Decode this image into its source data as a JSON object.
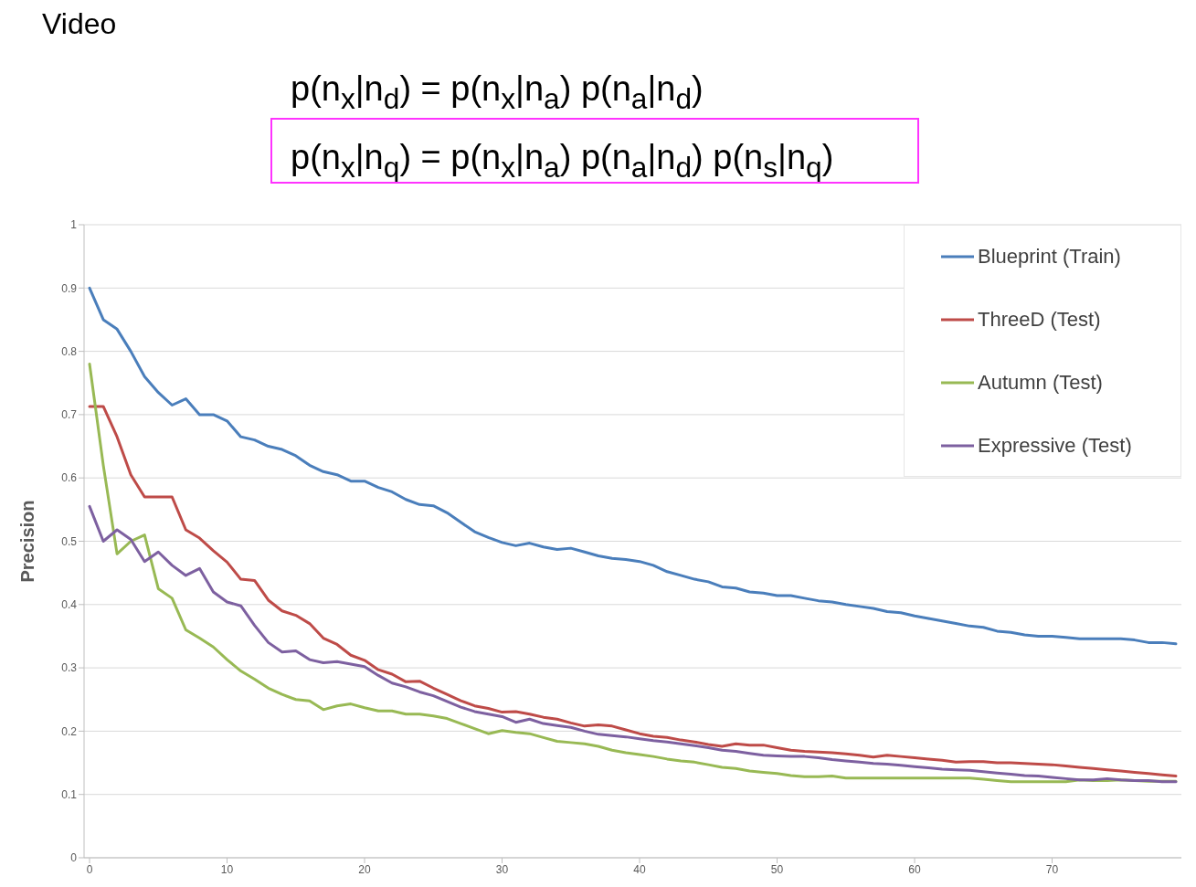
{
  "chart_data": {
    "type": "line",
    "title": "Video",
    "annotations": [
      "p(n$_{x}$|n$_{d}$) = p(n$_{x}$|n$_{a}$) p(n$_{a}$|n$_{d}$)",
      "p(n$_{x}$|n$_{q}$) = p(n$_{x}$|n$_{a}$) p(n$_{a}$|n$_{d}$) p(n$_{s}$|n$_{q}$)"
    ],
    "ylabel": "Precision",
    "x": [
      0,
      1,
      2,
      3,
      4,
      5,
      6,
      7,
      8,
      9,
      10,
      11,
      12,
      13,
      14,
      15,
      16,
      17,
      18,
      19,
      20,
      21,
      22,
      23,
      24,
      25,
      26,
      27,
      28,
      29,
      30,
      31,
      32,
      33,
      34,
      35,
      36,
      37,
      38,
      39,
      40,
      41,
      42,
      43,
      44,
      45,
      46,
      47,
      48,
      49,
      50,
      51,
      52,
      53,
      54,
      55,
      56,
      57,
      58,
      59,
      60,
      61,
      62,
      63,
      64,
      65,
      66,
      67,
      68,
      69,
      70,
      71,
      72,
      73,
      74,
      75,
      76,
      77,
      78,
      79
    ],
    "xlim": [
      -0.4,
      79.4
    ],
    "xticks": [
      0,
      10,
      20,
      30,
      40,
      50,
      60,
      70
    ],
    "ylim": [
      0,
      1
    ],
    "yticks": [
      0,
      0.1,
      0.2,
      0.3,
      0.4,
      0.5,
      0.6,
      0.7,
      0.8,
      0.9,
      1
    ],
    "grid": "y",
    "legend": "top right",
    "marker": "none",
    "line_style": "solid",
    "series": [
      {
        "name": "Blueprint (Train)",
        "color": "#4a7ebb",
        "values": [
          0.9,
          0.85,
          0.835,
          0.8,
          0.76,
          0.735,
          0.715,
          0.725,
          0.7,
          0.7,
          0.69,
          0.665,
          0.66,
          0.65,
          0.645,
          0.635,
          0.62,
          0.61,
          0.605,
          0.595,
          0.595,
          0.585,
          0.578,
          0.566,
          0.558,
          0.556,
          0.545,
          0.53,
          0.515,
          0.506,
          0.498,
          0.493,
          0.497,
          0.491,
          0.487,
          0.489,
          0.483,
          0.477,
          0.473,
          0.471,
          0.468,
          0.462,
          0.452,
          0.446,
          0.44,
          0.436,
          0.428,
          0.426,
          0.42,
          0.418,
          0.414,
          0.414,
          0.41,
          0.406,
          0.404,
          0.4,
          0.397,
          0.394,
          0.389,
          0.387,
          0.382,
          0.378,
          0.374,
          0.37,
          0.366,
          0.364,
          0.358,
          0.356,
          0.352,
          0.35,
          0.35,
          0.348,
          0.346,
          0.346,
          0.346,
          0.346,
          0.344,
          0.34,
          0.34,
          0.338
        ]
      },
      {
        "name": "ThreeD (Test)",
        "color": "#be4b48",
        "values": [
          0.713,
          0.713,
          0.665,
          0.605,
          0.57,
          0.57,
          0.57,
          0.518,
          0.505,
          0.485,
          0.467,
          0.44,
          0.438,
          0.407,
          0.39,
          0.383,
          0.37,
          0.347,
          0.337,
          0.32,
          0.312,
          0.297,
          0.29,
          0.278,
          0.279,
          0.268,
          0.258,
          0.248,
          0.24,
          0.236,
          0.23,
          0.231,
          0.227,
          0.222,
          0.219,
          0.213,
          0.208,
          0.21,
          0.208,
          0.202,
          0.196,
          0.192,
          0.19,
          0.186,
          0.183,
          0.179,
          0.176,
          0.18,
          0.178,
          0.178,
          0.174,
          0.17,
          0.168,
          0.167,
          0.166,
          0.164,
          0.162,
          0.159,
          0.162,
          0.16,
          0.158,
          0.156,
          0.154,
          0.151,
          0.152,
          0.152,
          0.15,
          0.15,
          0.149,
          0.148,
          0.147,
          0.145,
          0.143,
          0.141,
          0.139,
          0.137,
          0.135,
          0.133,
          0.131,
          0.129
        ]
      },
      {
        "name": "Autumn (Test)",
        "color": "#98b954",
        "values": [
          0.78,
          0.62,
          0.48,
          0.5,
          0.51,
          0.425,
          0.41,
          0.36,
          0.347,
          0.333,
          0.313,
          0.295,
          0.282,
          0.268,
          0.258,
          0.25,
          0.248,
          0.234,
          0.24,
          0.243,
          0.237,
          0.232,
          0.232,
          0.227,
          0.227,
          0.224,
          0.22,
          0.212,
          0.204,
          0.196,
          0.201,
          0.198,
          0.196,
          0.19,
          0.184,
          0.182,
          0.18,
          0.176,
          0.17,
          0.166,
          0.163,
          0.16,
          0.156,
          0.153,
          0.151,
          0.147,
          0.143,
          0.141,
          0.137,
          0.135,
          0.133,
          0.13,
          0.128,
          0.128,
          0.129,
          0.126,
          0.126,
          0.126,
          0.126,
          0.126,
          0.126,
          0.126,
          0.126,
          0.126,
          0.126,
          0.124,
          0.122,
          0.12,
          0.12,
          0.12,
          0.12,
          0.12,
          0.123,
          0.122,
          0.122,
          0.123,
          0.122,
          0.121,
          0.121,
          0.121
        ]
      },
      {
        "name": "Expressive (Test)",
        "color": "#7d60a0",
        "values": [
          0.555,
          0.5,
          0.518,
          0.503,
          0.468,
          0.483,
          0.462,
          0.446,
          0.457,
          0.42,
          0.404,
          0.398,
          0.367,
          0.34,
          0.325,
          0.327,
          0.313,
          0.308,
          0.31,
          0.306,
          0.302,
          0.288,
          0.276,
          0.27,
          0.262,
          0.256,
          0.247,
          0.238,
          0.231,
          0.227,
          0.223,
          0.214,
          0.219,
          0.212,
          0.209,
          0.206,
          0.2,
          0.195,
          0.193,
          0.191,
          0.188,
          0.185,
          0.183,
          0.18,
          0.177,
          0.174,
          0.17,
          0.168,
          0.165,
          0.162,
          0.161,
          0.16,
          0.16,
          0.158,
          0.155,
          0.153,
          0.151,
          0.149,
          0.148,
          0.146,
          0.144,
          0.142,
          0.14,
          0.139,
          0.138,
          0.136,
          0.134,
          0.132,
          0.13,
          0.129,
          0.127,
          0.125,
          0.123,
          0.123,
          0.125,
          0.123,
          0.122,
          0.122,
          0.12,
          0.12
        ]
      }
    ]
  }
}
